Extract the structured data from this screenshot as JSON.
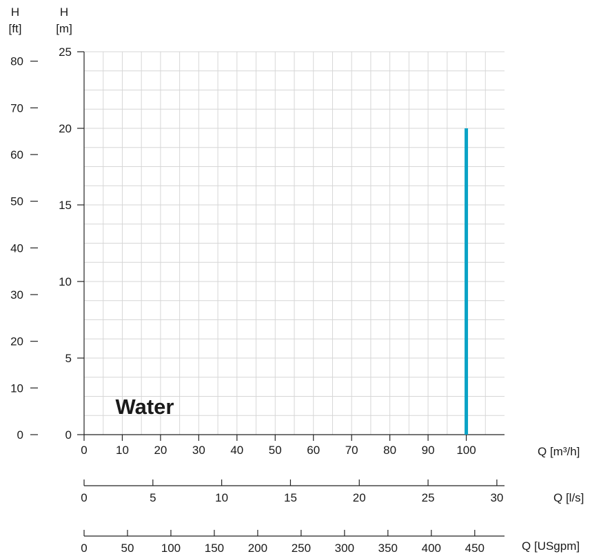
{
  "chart_data": {
    "type": "line",
    "annotation": "Water",
    "colors": {
      "curve": "#0aa3c6",
      "axis": "#222222",
      "grid": "#d6d6d6",
      "annotation": "#0aa3c6"
    },
    "left_axis_ft": {
      "label_top": "H",
      "label_unit": "[ft]",
      "ticks": [
        0,
        10,
        20,
        30,
        40,
        50,
        60,
        70,
        80
      ],
      "range": [
        0,
        82.02
      ]
    },
    "left_axis_m": {
      "label_top": "H",
      "label_unit": "[m]",
      "ticks": [
        0,
        5,
        10,
        15,
        20,
        25
      ],
      "range": [
        0,
        25
      ]
    },
    "x_axis_m3h": {
      "label": "Q [m³/h]",
      "ticks": [
        0,
        10,
        20,
        30,
        40,
        50,
        60,
        70,
        80,
        90,
        100
      ],
      "range": [
        0,
        110
      ]
    },
    "x_axis_ls": {
      "label": "Q [l/s]",
      "ticks": [
        0,
        5,
        10,
        15,
        20,
        25,
        30
      ],
      "range": [
        0,
        30.556
      ]
    },
    "x_axis_usgpm": {
      "label": "Q [USgpm]",
      "ticks": [
        0,
        50,
        100,
        150,
        200,
        250,
        300,
        350,
        400,
        450
      ],
      "range": [
        0,
        484.3
      ]
    },
    "grid": true,
    "series": [
      {
        "points": [
          {
            "x": 100,
            "y": 0
          },
          {
            "x": 100,
            "y": 20
          }
        ]
      }
    ]
  }
}
